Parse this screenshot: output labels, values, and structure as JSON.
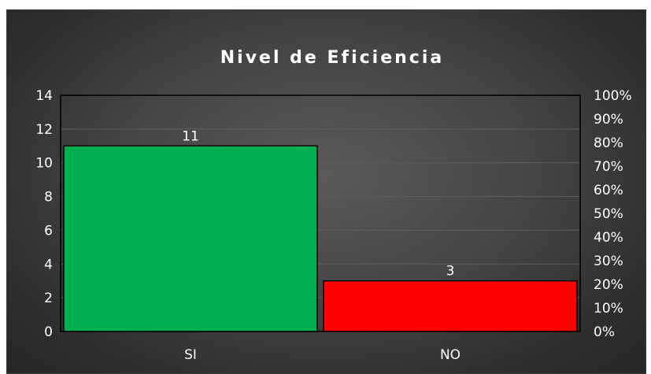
{
  "chart_data": {
    "type": "bar",
    "title": "Nivel de Eficiencia",
    "categories": [
      "SI",
      "NO"
    ],
    "values": [
      11,
      3
    ],
    "data_labels": [
      "11",
      "3"
    ],
    "ylim": [
      0,
      14
    ],
    "y_ticks": [
      "0",
      "2",
      "4",
      "6",
      "8",
      "10",
      "12",
      "14"
    ],
    "y2lim": [
      0,
      1
    ],
    "y2_ticks": [
      "0%",
      "10%",
      "20%",
      "30%",
      "40%",
      "50%",
      "60%",
      "70%",
      "80%",
      "90%",
      "100%"
    ],
    "grid": true,
    "legend": "none",
    "colors": {
      "SI": "#00b050",
      "NO": "#ff0000",
      "background": "#404040",
      "text": "#ffffff",
      "bar_border": "#000000"
    }
  }
}
